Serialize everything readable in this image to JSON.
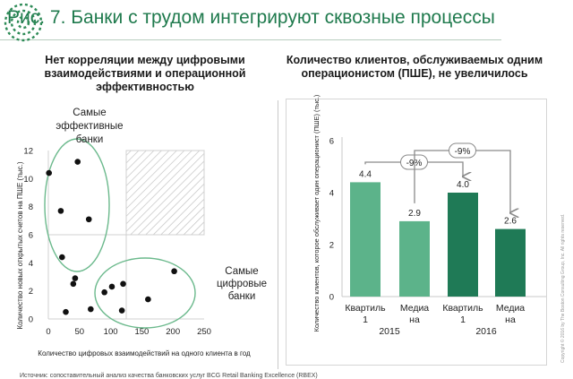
{
  "page": {
    "title": "Рис. 7. Банки с трудом интегрируют сквозные процессы",
    "source": "Источник: сопоставительный анализ качества банковских услуг BCG Retail Banking Excellence (RBEX)",
    "copyright": "Copyright © 2016 by The Boston Consulting Group, Inc. All rights reserved.",
    "colors": {
      "brand": "#1f7a4d",
      "light_bar": "#5cb38a",
      "dark_bar": "#1f7a56",
      "ellipse": "#6bb98c"
    }
  },
  "chart_data": [
    {
      "type": "scatter",
      "title": "Нет корреляции между цифровыми взаимодействиями и операционной эффективностью",
      "xlabel": "Количество цифровых взаимодействий на одного клиента в год",
      "ylabel": "Количество новых открытых счетов на ПШЕ (тыс.)",
      "xlim": [
        0,
        250
      ],
      "ylim": [
        0,
        12
      ],
      "xticks": [
        "0",
        "50",
        "100",
        "150",
        "200",
        "250"
      ],
      "yticks": [
        "0",
        "2",
        "4",
        "6",
        "8",
        "10",
        "12"
      ],
      "threshold": {
        "x": 125,
        "y": 6
      },
      "points": [
        {
          "x": 1,
          "y": 10.4
        },
        {
          "x": 47,
          "y": 11.2
        },
        {
          "x": 20,
          "y": 7.7
        },
        {
          "x": 65,
          "y": 7.1
        },
        {
          "x": 22,
          "y": 4.4
        },
        {
          "x": 43,
          "y": 2.9
        },
        {
          "x": 40,
          "y": 2.5
        },
        {
          "x": 28,
          "y": 0.5
        },
        {
          "x": 68,
          "y": 0.7
        },
        {
          "x": 90,
          "y": 1.9
        },
        {
          "x": 102,
          "y": 2.3
        },
        {
          "x": 120,
          "y": 2.5
        },
        {
          "x": 118,
          "y": 0.6
        },
        {
          "x": 160,
          "y": 1.4
        },
        {
          "x": 202,
          "y": 3.4
        }
      ],
      "annotations": [
        {
          "id": "efficient",
          "text": [
            "Самые",
            "эффективные",
            "банки"
          ]
        },
        {
          "id": "digital",
          "text": [
            "Самые",
            "цифровые",
            "банки"
          ]
        }
      ]
    },
    {
      "type": "bar",
      "title": "Количество клиентов, обслуживаемых одним операционистом (ПШЕ), не увеличилось",
      "ylabel": "Количество клиентов, которое обслуживает один операционист (ПШЕ) (тыс.)",
      "ylim": [
        0,
        6
      ],
      "yticks": [
        "0",
        "2",
        "4",
        "6"
      ],
      "bars": [
        {
          "label": [
            "Квартиль",
            "1"
          ],
          "value": 4.4,
          "display": "4.4",
          "shade": "light"
        },
        {
          "label": [
            "Медиа",
            "на"
          ],
          "value": 2.9,
          "display": "2.9",
          "shade": "light"
        },
        {
          "label": [
            "Квартиль",
            "1"
          ],
          "value": 4.0,
          "display": "4.0",
          "shade": "dark"
        },
        {
          "label": [
            "Медиа",
            "на"
          ],
          "value": 2.6,
          "display": "2.6",
          "shade": "dark"
        }
      ],
      "groups": [
        "2015",
        "2016"
      ],
      "changes": [
        "-9%",
        "-9%"
      ]
    }
  ]
}
